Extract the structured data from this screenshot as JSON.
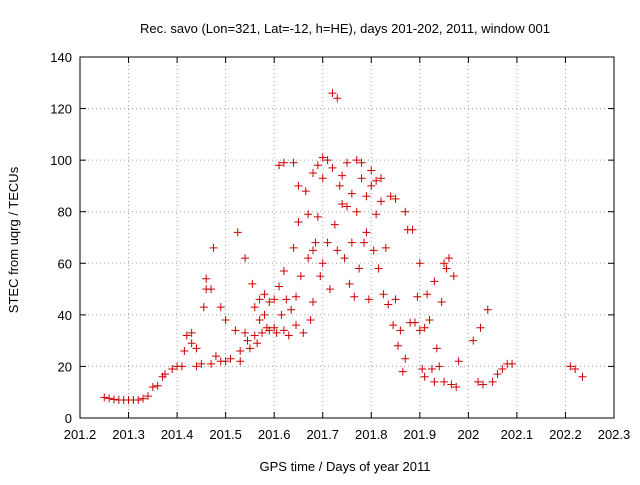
{
  "chart_data": {
    "type": "scatter",
    "title": "Rec. savo (Lon=321, Lat=-12, h=HE), days 201-202, 2011, window 001",
    "xlabel": "GPS time / Days of year 2011",
    "ylabel": "STEC from uqrg / TECUs",
    "xlim": [
      201.2,
      202.3
    ],
    "ylim": [
      0,
      140
    ],
    "xticks": [
      "201.2",
      "201.3",
      "201.4",
      "201.5",
      "201.6",
      "201.7",
      "201.8",
      "201.9",
      "202",
      "202.1",
      "202.2",
      "202.3"
    ],
    "yticks": [
      "0",
      "20",
      "40",
      "60",
      "80",
      "100",
      "120",
      "140"
    ],
    "grid": true,
    "marker": "plus",
    "color": "#cc0000",
    "points": [
      [
        201.25,
        8
      ],
      [
        201.26,
        7.6
      ],
      [
        201.27,
        7.2
      ],
      [
        201.28,
        7
      ],
      [
        201.29,
        7
      ],
      [
        201.3,
        7
      ],
      [
        201.31,
        7
      ],
      [
        201.32,
        7
      ],
      [
        201.33,
        7.5
      ],
      [
        201.34,
        8.5
      ],
      [
        201.35,
        12
      ],
      [
        201.36,
        12.5
      ],
      [
        201.37,
        16
      ],
      [
        201.375,
        17
      ],
      [
        201.39,
        19
      ],
      [
        201.4,
        20
      ],
      [
        201.41,
        20
      ],
      [
        201.415,
        26
      ],
      [
        201.42,
        32
      ],
      [
        201.43,
        33
      ],
      [
        201.43,
        29
      ],
      [
        201.44,
        27
      ],
      [
        201.44,
        20
      ],
      [
        201.45,
        21
      ],
      [
        201.455,
        43
      ],
      [
        201.46,
        54
      ],
      [
        201.46,
        50
      ],
      [
        201.47,
        50
      ],
      [
        201.47,
        21
      ],
      [
        201.475,
        66
      ],
      [
        201.48,
        24
      ],
      [
        201.49,
        22
      ],
      [
        201.49,
        43
      ],
      [
        201.5,
        38
      ],
      [
        201.5,
        22
      ],
      [
        201.51,
        23
      ],
      [
        201.52,
        34
      ],
      [
        201.525,
        72
      ],
      [
        201.53,
        26
      ],
      [
        201.53,
        22
      ],
      [
        201.54,
        62
      ],
      [
        201.54,
        33
      ],
      [
        201.545,
        30
      ],
      [
        201.55,
        27
      ],
      [
        201.555,
        52
      ],
      [
        201.56,
        43
      ],
      [
        201.56,
        32
      ],
      [
        201.565,
        29
      ],
      [
        201.57,
        46
      ],
      [
        201.57,
        38
      ],
      [
        201.575,
        33
      ],
      [
        201.58,
        48
      ],
      [
        201.58,
        40
      ],
      [
        201.585,
        35
      ],
      [
        201.59,
        45
      ],
      [
        201.59,
        34
      ],
      [
        201.6,
        46
      ],
      [
        201.6,
        35
      ],
      [
        201.605,
        33
      ],
      [
        201.61,
        98
      ],
      [
        201.61,
        51
      ],
      [
        201.615,
        40
      ],
      [
        201.62,
        99
      ],
      [
        201.62,
        57
      ],
      [
        201.62,
        34
      ],
      [
        201.625,
        46
      ],
      [
        201.63,
        32
      ],
      [
        201.635,
        42
      ],
      [
        201.64,
        99
      ],
      [
        201.64,
        66
      ],
      [
        201.645,
        47
      ],
      [
        201.645,
        36
      ],
      [
        201.65,
        90
      ],
      [
        201.65,
        76
      ],
      [
        201.655,
        55
      ],
      [
        201.66,
        33
      ],
      [
        201.665,
        88
      ],
      [
        201.67,
        79
      ],
      [
        201.67,
        62
      ],
      [
        201.675,
        38
      ],
      [
        201.68,
        95
      ],
      [
        201.68,
        65
      ],
      [
        201.68,
        45
      ],
      [
        201.685,
        68
      ],
      [
        201.69,
        98
      ],
      [
        201.69,
        78
      ],
      [
        201.695,
        55
      ],
      [
        201.7,
        101
      ],
      [
        201.7,
        93
      ],
      [
        201.7,
        60
      ],
      [
        201.71,
        100
      ],
      [
        201.71,
        68
      ],
      [
        201.715,
        50
      ],
      [
        201.72,
        126
      ],
      [
        201.72,
        97
      ],
      [
        201.725,
        75
      ],
      [
        201.73,
        124
      ],
      [
        201.73,
        65
      ],
      [
        201.735,
        90
      ],
      [
        201.74,
        94
      ],
      [
        201.74,
        83
      ],
      [
        201.745,
        62
      ],
      [
        201.75,
        99
      ],
      [
        201.75,
        82
      ],
      [
        201.755,
        52
      ],
      [
        201.76,
        87
      ],
      [
        201.76,
        68
      ],
      [
        201.765,
        47
      ],
      [
        201.77,
        100
      ],
      [
        201.77,
        80
      ],
      [
        201.775,
        58
      ],
      [
        201.78,
        99
      ],
      [
        201.78,
        93
      ],
      [
        201.785,
        68
      ],
      [
        201.79,
        86
      ],
      [
        201.79,
        72
      ],
      [
        201.795,
        46
      ],
      [
        201.8,
        96
      ],
      [
        201.8,
        90
      ],
      [
        201.805,
        65
      ],
      [
        201.81,
        92
      ],
      [
        201.81,
        79
      ],
      [
        201.815,
        58
      ],
      [
        201.82,
        93
      ],
      [
        201.82,
        84
      ],
      [
        201.825,
        48
      ],
      [
        201.83,
        66
      ],
      [
        201.835,
        44
      ],
      [
        201.84,
        86
      ],
      [
        201.845,
        36
      ],
      [
        201.85,
        85
      ],
      [
        201.85,
        46
      ],
      [
        201.855,
        28
      ],
      [
        201.86,
        34
      ],
      [
        201.865,
        18
      ],
      [
        201.87,
        80
      ],
      [
        201.87,
        23
      ],
      [
        201.875,
        73
      ],
      [
        201.88,
        37
      ],
      [
        201.885,
        73
      ],
      [
        201.89,
        37
      ],
      [
        201.895,
        47
      ],
      [
        201.9,
        60
      ],
      [
        201.9,
        34
      ],
      [
        201.905,
        19
      ],
      [
        201.91,
        35
      ],
      [
        201.91,
        16
      ],
      [
        201.915,
        48
      ],
      [
        201.92,
        38
      ],
      [
        201.925,
        19
      ],
      [
        201.93,
        53
      ],
      [
        201.93,
        14
      ],
      [
        201.935,
        27
      ],
      [
        201.94,
        20
      ],
      [
        201.945,
        45
      ],
      [
        201.95,
        60
      ],
      [
        201.95,
        14
      ],
      [
        201.955,
        58
      ],
      [
        201.96,
        62
      ],
      [
        201.965,
        13
      ],
      [
        201.97,
        55
      ],
      [
        201.975,
        12
      ],
      [
        201.98,
        22
      ],
      [
        202.01,
        30
      ],
      [
        202.02,
        14
      ],
      [
        202.025,
        35
      ],
      [
        202.03,
        13
      ],
      [
        202.04,
        42
      ],
      [
        202.05,
        14
      ],
      [
        202.06,
        17
      ],
      [
        202.07,
        19
      ],
      [
        202.08,
        21
      ],
      [
        202.09,
        21
      ],
      [
        202.21,
        20
      ],
      [
        202.22,
        19
      ],
      [
        202.235,
        16
      ]
    ]
  }
}
